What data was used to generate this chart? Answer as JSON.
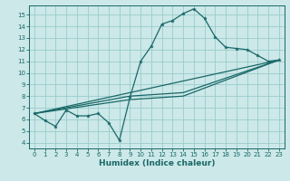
{
  "xlabel": "Humidex (Indice chaleur)",
  "bg_color": "#cce8e8",
  "grid_color": "#99cccc",
  "line_color": "#1a6868",
  "xlim": [
    -0.5,
    23.5
  ],
  "ylim": [
    3.5,
    15.8
  ],
  "xticks": [
    0,
    1,
    2,
    3,
    4,
    5,
    6,
    7,
    8,
    9,
    10,
    11,
    12,
    13,
    14,
    15,
    16,
    17,
    18,
    19,
    20,
    21,
    22,
    23
  ],
  "yticks": [
    4,
    5,
    6,
    7,
    8,
    9,
    10,
    11,
    12,
    13,
    14,
    15
  ],
  "main_x": [
    0,
    1,
    2,
    3,
    4,
    5,
    6,
    7,
    8,
    9,
    10,
    11,
    12,
    13,
    14,
    15,
    16,
    17,
    18,
    19,
    20,
    21,
    22,
    23
  ],
  "main_y": [
    6.5,
    5.9,
    5.4,
    6.8,
    6.3,
    6.3,
    6.5,
    5.7,
    4.2,
    7.9,
    11.0,
    12.3,
    14.2,
    14.5,
    15.1,
    15.5,
    14.7,
    13.1,
    12.2,
    12.1,
    12.0,
    11.5,
    11.0,
    11.1
  ],
  "trend1_x": [
    0,
    23
  ],
  "trend1_y": [
    6.5,
    11.1
  ],
  "trend2_x": [
    0,
    9,
    14,
    23
  ],
  "trend2_y": [
    6.5,
    8.0,
    8.3,
    11.1
  ],
  "trend3_x": [
    0,
    9,
    14,
    23
  ],
  "trend3_y": [
    6.5,
    7.7,
    8.0,
    11.1
  ]
}
